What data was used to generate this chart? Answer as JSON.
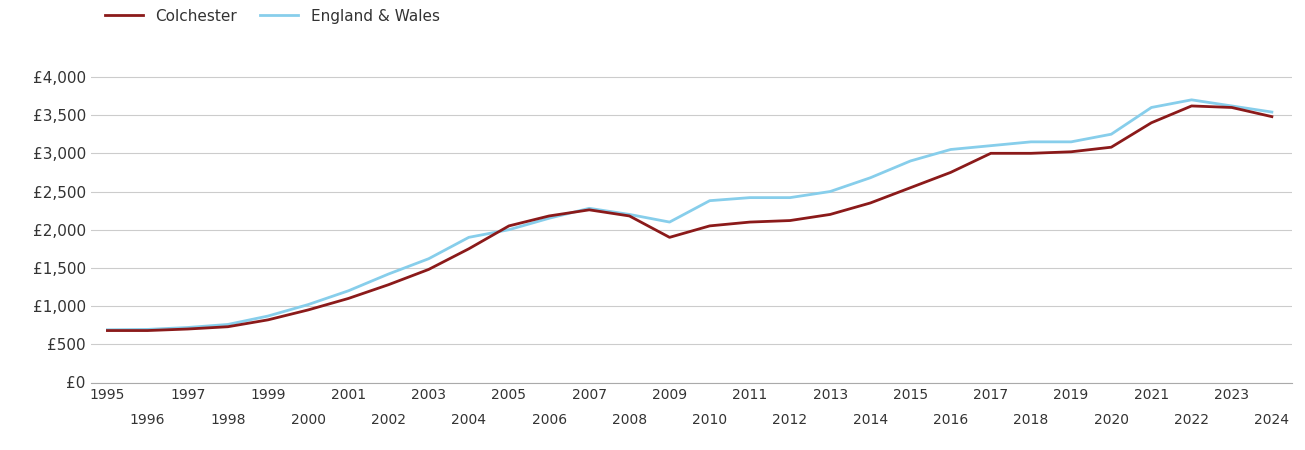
{
  "colchester_years": [
    1995,
    1996,
    1997,
    1998,
    1999,
    2000,
    2001,
    2002,
    2003,
    2004,
    2005,
    2006,
    2007,
    2008,
    2009,
    2010,
    2011,
    2012,
    2013,
    2014,
    2015,
    2016,
    2017,
    2018,
    2019,
    2020,
    2021,
    2022,
    2023,
    2024
  ],
  "colchester_values": [
    680,
    680,
    700,
    730,
    820,
    950,
    1100,
    1280,
    1480,
    1750,
    2050,
    2180,
    2260,
    2180,
    1900,
    2050,
    2100,
    2120,
    2200,
    2350,
    2550,
    2750,
    3000,
    3000,
    3020,
    3080,
    3400,
    3620,
    3600,
    3480
  ],
  "england_years": [
    1995,
    1996,
    1997,
    1998,
    1999,
    2000,
    2001,
    2002,
    2003,
    2004,
    2005,
    2006,
    2007,
    2008,
    2009,
    2010,
    2011,
    2012,
    2013,
    2014,
    2015,
    2016,
    2017,
    2018,
    2019,
    2020,
    2021,
    2022,
    2023,
    2024
  ],
  "england_values": [
    690,
    695,
    720,
    760,
    870,
    1020,
    1200,
    1420,
    1620,
    1900,
    2000,
    2150,
    2280,
    2200,
    2100,
    2380,
    2420,
    2420,
    2500,
    2680,
    2900,
    3050,
    3100,
    3150,
    3150,
    3250,
    3600,
    3700,
    3620,
    3540
  ],
  "colchester_color": "#8B1A1A",
  "england_color": "#87CEEB",
  "colchester_label": "Colchester",
  "england_label": "England & Wales",
  "yticks": [
    0,
    500,
    1000,
    1500,
    2000,
    2500,
    3000,
    3500,
    4000
  ],
  "ytick_labels": [
    "£0",
    "£500",
    "£1,000",
    "£1,500",
    "£2,000",
    "£2,500",
    "£3,000",
    "£3,500",
    "£4,000"
  ],
  "ylim": [
    0,
    4300
  ],
  "xlim_min": 1994.6,
  "xlim_max": 2024.5,
  "xticks_odd": [
    1995,
    1997,
    1999,
    2001,
    2003,
    2005,
    2007,
    2009,
    2011,
    2013,
    2015,
    2017,
    2019,
    2021,
    2023
  ],
  "xticks_even": [
    1996,
    1998,
    2000,
    2002,
    2004,
    2006,
    2008,
    2010,
    2012,
    2014,
    2016,
    2018,
    2020,
    2022,
    2024
  ],
  "background_color": "#ffffff",
  "grid_color": "#cccccc",
  "line_width": 2.0,
  "tick_fontsize": 10,
  "ytick_fontsize": 11
}
